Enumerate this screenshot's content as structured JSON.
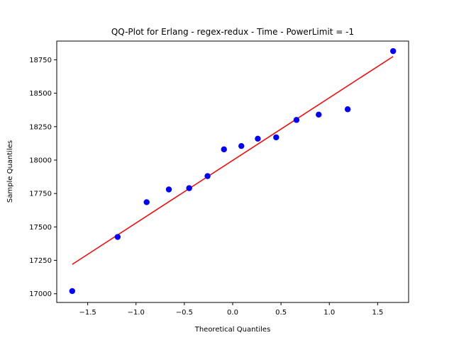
{
  "chart_data": {
    "type": "scatter",
    "title": "QQ-Plot for Erlang - regex-redux - Time - PowerLimit = -1",
    "xlabel": "Theoretical Quantiles",
    "ylabel": "Sample Quantiles",
    "xlim": [
      -1.82,
      1.82
    ],
    "ylim": [
      16935,
      18890
    ],
    "x_ticks": [
      -1.5,
      -1.0,
      -0.5,
      0.0,
      0.5,
      1.0,
      1.5
    ],
    "x_tick_labels": [
      "−1.5",
      "−1.0",
      "−0.5",
      "0.0",
      "0.5",
      "1.0",
      "1.5"
    ],
    "y_ticks": [
      17000,
      17250,
      17500,
      17750,
      18000,
      18250,
      18500,
      18750
    ],
    "y_tick_labels": [
      "17000",
      "17250",
      "17500",
      "17750",
      "18000",
      "18250",
      "18500",
      "18750"
    ],
    "grid": false,
    "series": [
      {
        "kind": "points",
        "color": "#0000ff",
        "x": [
          -1.66,
          -1.19,
          -0.89,
          -0.66,
          -0.45,
          -0.26,
          -0.09,
          0.09,
          0.26,
          0.45,
          0.66,
          0.89,
          1.19,
          1.66
        ],
        "y": [
          17020,
          17425,
          17685,
          17780,
          17790,
          17880,
          18080,
          18105,
          18160,
          18170,
          18300,
          18340,
          18380,
          18815
        ]
      },
      {
        "kind": "line",
        "color": "#ff0000",
        "x": [
          -1.66,
          1.66
        ],
        "y": [
          17220,
          18775
        ]
      }
    ]
  }
}
